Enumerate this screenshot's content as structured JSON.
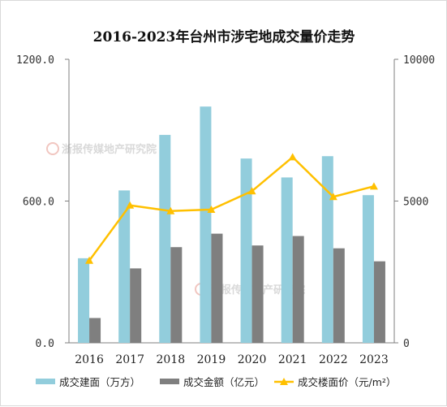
{
  "chart_data": {
    "type": "bar",
    "title": "2016-2023年台州市涉宅地成交量价走势",
    "categories": [
      "2016",
      "2017",
      "2018",
      "2019",
      "2020",
      "2021",
      "2022",
      "2023"
    ],
    "y_left": {
      "ylim": [
        0,
        1200
      ],
      "ticks": [
        "0.0",
        "600.0",
        "1200.0"
      ]
    },
    "y_right": {
      "ylim": [
        0,
        10000
      ],
      "ticks": [
        "0",
        "5000",
        "10000"
      ]
    },
    "series": [
      {
        "name": "成交建面（万方）",
        "type": "bar",
        "axis": "left",
        "color": "#92CDDC",
        "values": [
          358,
          645,
          880,
          1000,
          780,
          700,
          790,
          625
        ]
      },
      {
        "name": "成交金额（亿元）",
        "type": "bar",
        "axis": "left",
        "color": "#7F7F7F",
        "values": [
          105,
          315,
          405,
          462,
          412,
          452,
          400,
          345
        ]
      },
      {
        "name": "成交楼面价（元/m²）",
        "type": "line",
        "axis": "right",
        "color": "#FFC000",
        "values": [
          2900,
          4850,
          4650,
          4700,
          5350,
          6550,
          5150,
          5520
        ]
      }
    ],
    "watermark": "浙报传媒地产研究院",
    "legend_position": "bottom",
    "grid": false
  }
}
